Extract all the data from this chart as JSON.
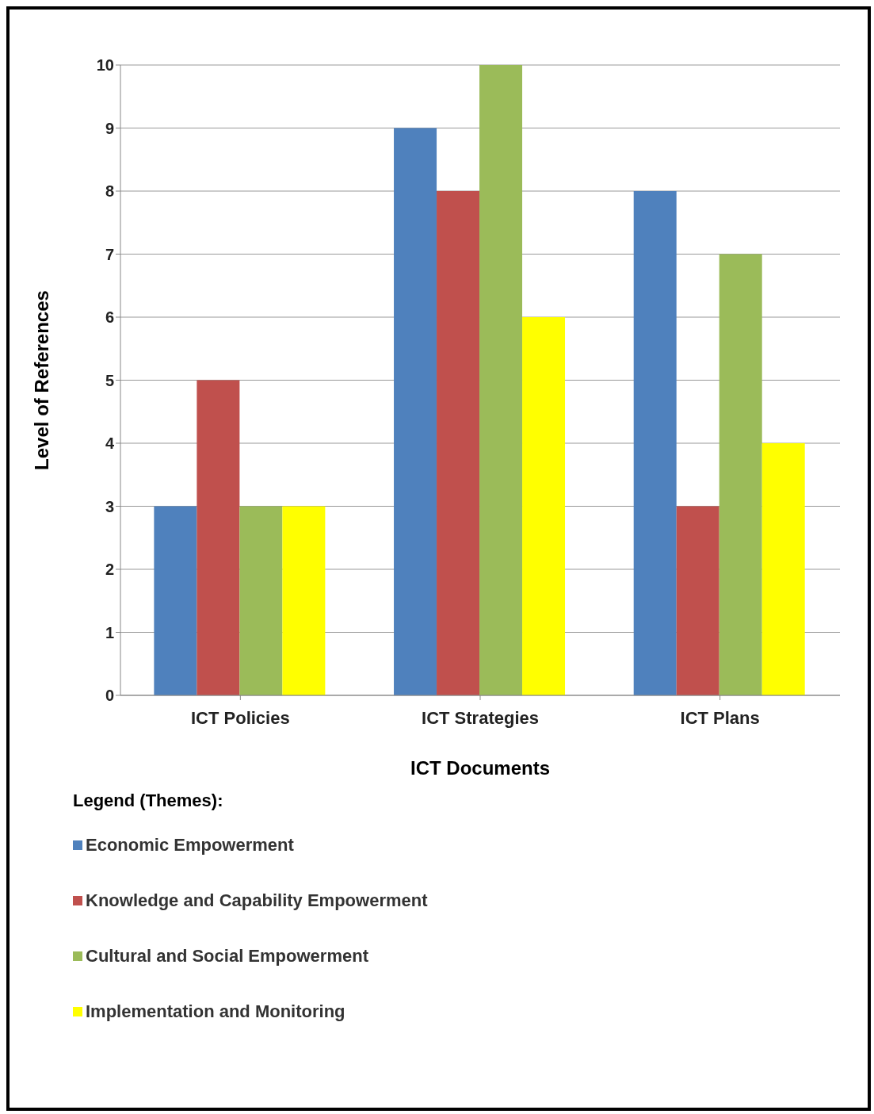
{
  "chart_data": {
    "type": "bar",
    "xlabel": "ICT Documents",
    "ylabel": "Level of References",
    "legend_title": "Legend (Themes):",
    "categories": [
      "ICT Policies",
      "ICT Strategies",
      "ICT Plans"
    ],
    "series": [
      {
        "name": "Economic Empowerment",
        "color": "#4f81bd",
        "values": [
          3,
          9,
          8
        ]
      },
      {
        "name": "Knowledge and Capability Empowerment",
        "color": "#c0504d",
        "values": [
          5,
          8,
          3
        ]
      },
      {
        "name": "Cultural and Social Empowerment",
        "color": "#9bbb59",
        "values": [
          3,
          10,
          7
        ]
      },
      {
        "name": "Implementation and Monitoring",
        "color": "#ffff00",
        "values": [
          3,
          6,
          4
        ]
      }
    ],
    "ylim": [
      0,
      10
    ],
    "yticks": [
      0,
      1,
      2,
      3,
      4,
      5,
      6,
      7,
      8,
      9,
      10
    ],
    "grid": "y",
    "legend": "bottom left"
  }
}
